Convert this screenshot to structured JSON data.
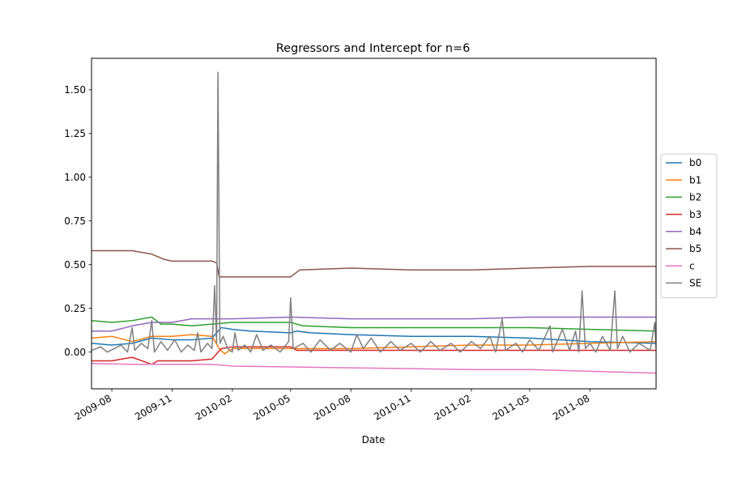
{
  "chart_data": {
    "type": "line",
    "title": "Regressors and Intercept for n=6",
    "xlabel": "Date",
    "ylabel": "",
    "xlim": [
      "2009-07-01",
      "2011-11-10"
    ],
    "ylim": [
      -0.21,
      1.68
    ],
    "yticks": [
      0.0,
      0.25,
      0.5,
      0.75,
      1.0,
      1.25,
      1.5
    ],
    "ytick_labels": [
      "0.00",
      "0.25",
      "0.50",
      "0.75",
      "1.00",
      "1.25",
      "1.50"
    ],
    "xticks": [
      "2009-08-01",
      "2009-11-01",
      "2010-02-01",
      "2010-05-01",
      "2010-08-01",
      "2010-11-01",
      "2011-02-01",
      "2011-05-01",
      "2011-08-01"
    ],
    "xtick_labels": [
      "2009-08",
      "2009-11",
      "2010-02",
      "2010-05",
      "2010-08",
      "2010-11",
      "2011-02",
      "2011-05",
      "2011-08"
    ],
    "grid": false,
    "legend_position": "right-outside",
    "series": [
      {
        "name": "b0",
        "color": "#1f77b4",
        "points": [
          [
            "2009-07-01",
            0.05
          ],
          [
            "2009-08-01",
            0.04
          ],
          [
            "2009-09-01",
            0.05
          ],
          [
            "2009-10-01",
            0.08
          ],
          [
            "2009-11-01",
            0.07
          ],
          [
            "2009-12-01",
            0.07
          ],
          [
            "2010-01-01",
            0.08
          ],
          [
            "2010-01-15",
            0.14
          ],
          [
            "2010-02-01",
            0.13
          ],
          [
            "2010-03-01",
            0.12
          ],
          [
            "2010-05-01",
            0.11
          ],
          [
            "2010-05-10",
            0.12
          ],
          [
            "2010-06-01",
            0.11
          ],
          [
            "2010-08-01",
            0.1
          ],
          [
            "2010-11-01",
            0.09
          ],
          [
            "2011-02-01",
            0.09
          ],
          [
            "2011-05-01",
            0.08
          ],
          [
            "2011-08-01",
            0.06
          ],
          [
            "2011-11-10",
            0.05
          ]
        ]
      },
      {
        "name": "b1",
        "color": "#ff7f0e",
        "points": [
          [
            "2009-07-01",
            0.08
          ],
          [
            "2009-08-01",
            0.09
          ],
          [
            "2009-09-01",
            0.06
          ],
          [
            "2009-10-01",
            0.09
          ],
          [
            "2009-11-01",
            0.09
          ],
          [
            "2009-12-01",
            0.1
          ],
          [
            "2010-01-01",
            0.09
          ],
          [
            "2010-01-12",
            0.02
          ],
          [
            "2010-01-20",
            -0.01
          ],
          [
            "2010-02-01",
            0.02
          ],
          [
            "2010-03-01",
            0.02
          ],
          [
            "2010-05-01",
            0.02
          ],
          [
            "2010-08-01",
            0.02
          ],
          [
            "2010-11-01",
            0.03
          ],
          [
            "2011-02-01",
            0.04
          ],
          [
            "2011-05-01",
            0.04
          ],
          [
            "2011-08-01",
            0.05
          ],
          [
            "2011-11-10",
            0.06
          ]
        ]
      },
      {
        "name": "b2",
        "color": "#2ca02c",
        "points": [
          [
            "2009-07-01",
            0.18
          ],
          [
            "2009-08-01",
            0.17
          ],
          [
            "2009-09-01",
            0.18
          ],
          [
            "2009-10-01",
            0.2
          ],
          [
            "2009-10-15",
            0.16
          ],
          [
            "2009-11-01",
            0.16
          ],
          [
            "2009-12-01",
            0.15
          ],
          [
            "2010-01-01",
            0.16
          ],
          [
            "2010-02-01",
            0.17
          ],
          [
            "2010-03-01",
            0.17
          ],
          [
            "2010-05-01",
            0.17
          ],
          [
            "2010-05-20",
            0.15
          ],
          [
            "2010-08-01",
            0.14
          ],
          [
            "2010-11-01",
            0.14
          ],
          [
            "2011-02-01",
            0.14
          ],
          [
            "2011-05-01",
            0.14
          ],
          [
            "2011-08-01",
            0.13
          ],
          [
            "2011-11-10",
            0.12
          ]
        ]
      },
      {
        "name": "b3",
        "color": "#d62728",
        "points": [
          [
            "2009-07-01",
            -0.05
          ],
          [
            "2009-08-01",
            -0.05
          ],
          [
            "2009-09-01",
            -0.03
          ],
          [
            "2009-10-01",
            -0.07
          ],
          [
            "2009-10-10",
            -0.05
          ],
          [
            "2009-11-01",
            -0.05
          ],
          [
            "2009-12-01",
            -0.05
          ],
          [
            "2010-01-01",
            -0.04
          ],
          [
            "2010-01-15",
            0.02
          ],
          [
            "2010-02-01",
            0.03
          ],
          [
            "2010-05-01",
            0.03
          ],
          [
            "2010-05-10",
            0.01
          ],
          [
            "2010-08-01",
            0.01
          ],
          [
            "2010-11-01",
            0.01
          ],
          [
            "2011-02-01",
            0.01
          ],
          [
            "2011-05-01",
            0.01
          ],
          [
            "2011-08-01",
            0.01
          ],
          [
            "2011-11-10",
            0.01
          ]
        ]
      },
      {
        "name": "b4",
        "color": "#9467bd",
        "points": [
          [
            "2009-07-01",
            0.12
          ],
          [
            "2009-08-01",
            0.12
          ],
          [
            "2009-09-01",
            0.15
          ],
          [
            "2009-10-01",
            0.17
          ],
          [
            "2009-11-01",
            0.17
          ],
          [
            "2009-12-01",
            0.19
          ],
          [
            "2010-01-01",
            0.19
          ],
          [
            "2010-02-01",
            0.19
          ],
          [
            "2010-05-01",
            0.2
          ],
          [
            "2010-08-01",
            0.19
          ],
          [
            "2010-11-01",
            0.19
          ],
          [
            "2011-02-01",
            0.19
          ],
          [
            "2011-05-01",
            0.2
          ],
          [
            "2011-08-01",
            0.2
          ],
          [
            "2011-11-10",
            0.2
          ]
        ]
      },
      {
        "name": "b5",
        "color": "#8c564b",
        "points": [
          [
            "2009-07-01",
            0.58
          ],
          [
            "2009-08-01",
            0.58
          ],
          [
            "2009-09-01",
            0.58
          ],
          [
            "2009-10-01",
            0.56
          ],
          [
            "2009-10-20",
            0.53
          ],
          [
            "2009-11-01",
            0.52
          ],
          [
            "2009-12-01",
            0.52
          ],
          [
            "2010-01-01",
            0.52
          ],
          [
            "2010-01-08",
            0.51
          ],
          [
            "2010-01-12",
            0.43
          ],
          [
            "2010-02-01",
            0.43
          ],
          [
            "2010-05-01",
            0.43
          ],
          [
            "2010-05-15",
            0.47
          ],
          [
            "2010-08-01",
            0.48
          ],
          [
            "2010-11-01",
            0.47
          ],
          [
            "2011-02-01",
            0.47
          ],
          [
            "2011-05-01",
            0.48
          ],
          [
            "2011-08-01",
            0.49
          ],
          [
            "2011-11-10",
            0.49
          ]
        ]
      },
      {
        "name": "c",
        "color": "#e377c2",
        "points": [
          [
            "2009-07-01",
            -0.065
          ],
          [
            "2009-09-01",
            -0.07
          ],
          [
            "2009-11-01",
            -0.07
          ],
          [
            "2010-01-01",
            -0.07
          ],
          [
            "2010-02-01",
            -0.08
          ],
          [
            "2010-05-01",
            -0.085
          ],
          [
            "2010-08-01",
            -0.09
          ],
          [
            "2010-11-01",
            -0.095
          ],
          [
            "2011-02-01",
            -0.1
          ],
          [
            "2011-05-01",
            -0.1
          ],
          [
            "2011-08-01",
            -0.11
          ],
          [
            "2011-11-10",
            -0.12
          ]
        ]
      },
      {
        "name": "SE",
        "color": "#7f7f7f",
        "points": [
          [
            "2009-07-01",
            0.01
          ],
          [
            "2009-07-15",
            0.03
          ],
          [
            "2009-07-25",
            0.0
          ],
          [
            "2009-08-05",
            0.02
          ],
          [
            "2009-08-15",
            0.04
          ],
          [
            "2009-08-25",
            0.0
          ],
          [
            "2009-09-01",
            0.14
          ],
          [
            "2009-09-05",
            0.01
          ],
          [
            "2009-09-15",
            0.05
          ],
          [
            "2009-09-25",
            0.02
          ],
          [
            "2009-10-01",
            0.18
          ],
          [
            "2009-10-05",
            0.0
          ],
          [
            "2009-10-15",
            0.06
          ],
          [
            "2009-10-25",
            0.01
          ],
          [
            "2009-11-05",
            0.07
          ],
          [
            "2009-11-15",
            0.0
          ],
          [
            "2009-11-25",
            0.04
          ],
          [
            "2009-12-05",
            0.01
          ],
          [
            "2009-12-10",
            0.11
          ],
          [
            "2009-12-15",
            0.0
          ],
          [
            "2009-12-25",
            0.05
          ],
          [
            "2010-01-01",
            0.02
          ],
          [
            "2010-01-05",
            0.38
          ],
          [
            "2010-01-08",
            0.05
          ],
          [
            "2010-01-10",
            1.6
          ],
          [
            "2010-01-13",
            0.05
          ],
          [
            "2010-01-18",
            0.09
          ],
          [
            "2010-01-25",
            0.02
          ],
          [
            "2010-02-01",
            0.0
          ],
          [
            "2010-02-05",
            0.11
          ],
          [
            "2010-02-10",
            0.01
          ],
          [
            "2010-02-20",
            0.04
          ],
          [
            "2010-03-01",
            0.0
          ],
          [
            "2010-03-10",
            0.1
          ],
          [
            "2010-03-20",
            0.01
          ],
          [
            "2010-04-01",
            0.04
          ],
          [
            "2010-04-15",
            0.0
          ],
          [
            "2010-04-28",
            0.06
          ],
          [
            "2010-05-01",
            0.31
          ],
          [
            "2010-05-05",
            0.02
          ],
          [
            "2010-05-20",
            0.05
          ],
          [
            "2010-06-01",
            0.0
          ],
          [
            "2010-06-15",
            0.07
          ],
          [
            "2010-07-01",
            0.01
          ],
          [
            "2010-07-15",
            0.05
          ],
          [
            "2010-08-01",
            0.0
          ],
          [
            "2010-08-10",
            0.1
          ],
          [
            "2010-08-20",
            0.02
          ],
          [
            "2010-09-01",
            0.08
          ],
          [
            "2010-09-15",
            0.0
          ],
          [
            "2010-10-01",
            0.06
          ],
          [
            "2010-10-15",
            0.01
          ],
          [
            "2010-11-01",
            0.05
          ],
          [
            "2010-11-15",
            0.0
          ],
          [
            "2010-12-01",
            0.06
          ],
          [
            "2010-12-15",
            0.01
          ],
          [
            "2011-01-01",
            0.05
          ],
          [
            "2011-01-15",
            0.0
          ],
          [
            "2011-02-01",
            0.06
          ],
          [
            "2011-02-15",
            0.02
          ],
          [
            "2011-03-01",
            0.09
          ],
          [
            "2011-03-10",
            0.0
          ],
          [
            "2011-03-20",
            0.19
          ],
          [
            "2011-03-25",
            0.01
          ],
          [
            "2011-04-10",
            0.05
          ],
          [
            "2011-04-20",
            0.0
          ],
          [
            "2011-05-01",
            0.07
          ],
          [
            "2011-05-15",
            0.01
          ],
          [
            "2011-06-01",
            0.15
          ],
          [
            "2011-06-05",
            0.0
          ],
          [
            "2011-06-20",
            0.13
          ],
          [
            "2011-07-01",
            0.01
          ],
          [
            "2011-07-10",
            0.12
          ],
          [
            "2011-07-15",
            0.0
          ],
          [
            "2011-07-20",
            0.35
          ],
          [
            "2011-07-25",
            0.02
          ],
          [
            "2011-08-01",
            0.05
          ],
          [
            "2011-08-10",
            0.0
          ],
          [
            "2011-08-20",
            0.09
          ],
          [
            "2011-09-01",
            0.01
          ],
          [
            "2011-09-08",
            0.35
          ],
          [
            "2011-09-12",
            0.02
          ],
          [
            "2011-09-20",
            0.09
          ],
          [
            "2011-10-01",
            0.0
          ],
          [
            "2011-10-15",
            0.05
          ],
          [
            "2011-11-01",
            0.01
          ],
          [
            "2011-11-08",
            0.17
          ],
          [
            "2011-11-10",
            0.02
          ]
        ]
      }
    ]
  }
}
